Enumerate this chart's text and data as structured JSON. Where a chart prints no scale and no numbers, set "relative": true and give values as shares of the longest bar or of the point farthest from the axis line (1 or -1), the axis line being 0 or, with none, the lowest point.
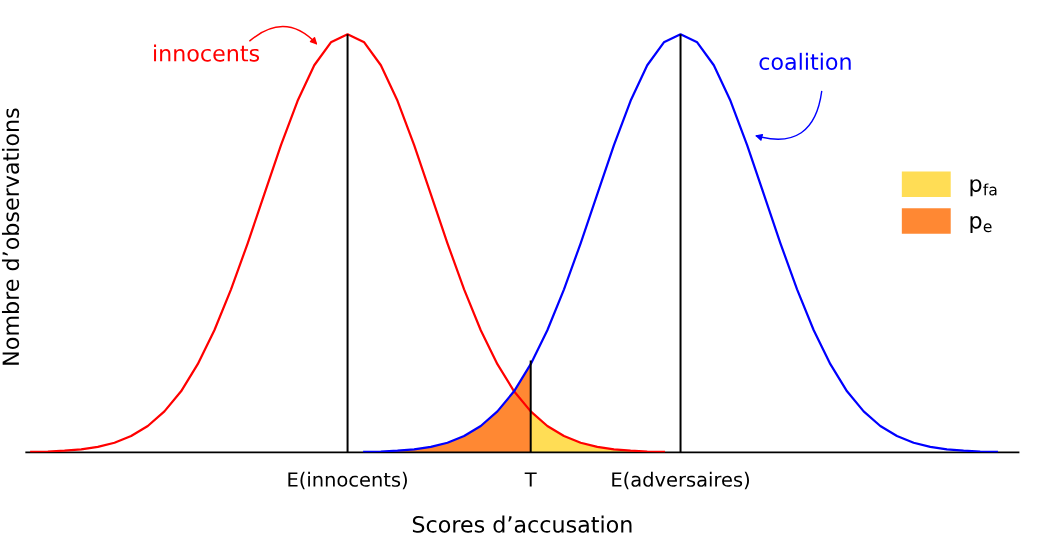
{
  "chart_data": {
    "type": "line",
    "relative": true,
    "xlabel": "Scores d’accusation",
    "ylabel": "Nombre d’observations",
    "legend": "right",
    "tick_labels": "x",
    "grid": false,
    "categories": [
      null,
      null,
      null,
      null,
      null,
      null,
      null,
      null,
      null,
      null,
      null,
      null,
      null,
      null,
      null,
      null,
      null,
      null,
      null,
      "E(innocents)",
      null,
      null,
      null,
      null,
      null,
      null,
      null,
      null,
      null,
      null,
      "T",
      null,
      null,
      null,
      null,
      null,
      null,
      null,
      null,
      "E(adversaires)",
      null,
      null,
      null,
      null,
      null,
      null,
      null,
      null,
      null,
      null,
      null,
      null,
      null,
      null,
      null,
      null,
      null,
      null,
      null,
      null
    ],
    "series": [
      {
        "type": "area",
        "name": "p$_{fa}$",
        "color": "#ffdd55",
        "values": [
          null,
          null,
          null,
          null,
          null,
          null,
          null,
          null,
          null,
          null,
          null,
          null,
          null,
          null,
          null,
          null,
          null,
          null,
          null,
          null,
          null,
          null,
          null,
          null,
          null,
          null,
          null,
          null,
          null,
          null,
          0.098,
          0.063,
          0.039,
          0.023,
          0.013,
          0.007,
          0.004,
          0.002,
          0.001,
          null,
          null,
          null,
          null,
          null,
          null,
          null,
          null,
          null,
          null,
          null,
          null,
          null,
          null,
          null,
          null,
          null,
          null,
          null,
          null,
          null
        ]
      },
      {
        "type": "area",
        "name": "p$_{e}$",
        "color": "#ff8833",
        "values": [
          null,
          null,
          null,
          null,
          null,
          null,
          null,
          null,
          null,
          null,
          null,
          null,
          null,
          null,
          null,
          null,
          null,
          null,
          null,
          null,
          0.001,
          0.002,
          0.004,
          0.007,
          0.013,
          0.023,
          0.039,
          0.063,
          0.098,
          0.146,
          0.211,
          null,
          null,
          null,
          null,
          null,
          null,
          null,
          null,
          null,
          null,
          null,
          null,
          null,
          null,
          null,
          null,
          null,
          null,
          null,
          null,
          null,
          null,
          null,
          null,
          null,
          null,
          null,
          null,
          null
        ]
      },
      {
        "name": "innocents",
        "color": "#ff0000",
        "values": [
          0.001,
          0.002,
          0.004,
          0.007,
          0.013,
          0.023,
          0.039,
          0.063,
          0.098,
          0.146,
          0.211,
          0.292,
          0.39,
          0.5,
          0.618,
          0.735,
          0.841,
          0.926,
          0.981,
          1,
          0.981,
          0.926,
          0.841,
          0.735,
          0.618,
          0.5,
          0.39,
          0.292,
          0.211,
          0.146,
          0.098,
          0.063,
          0.039,
          0.023,
          0.013,
          0.007,
          0.004,
          0.002,
          0.001,
          null,
          null,
          null,
          null,
          null,
          null,
          null,
          null,
          null,
          null,
          null,
          null,
          null,
          null,
          null,
          null,
          null,
          null,
          null,
          null,
          null
        ]
      },
      {
        "name": "coalition",
        "color": "#0000ff",
        "values": [
          null,
          null,
          null,
          null,
          null,
          null,
          null,
          null,
          null,
          null,
          null,
          null,
          null,
          null,
          null,
          null,
          null,
          null,
          null,
          null,
          0.001,
          0.002,
          0.004,
          0.007,
          0.013,
          0.023,
          0.039,
          0.063,
          0.098,
          0.146,
          0.211,
          0.292,
          0.39,
          0.5,
          0.618,
          0.735,
          0.841,
          0.926,
          0.981,
          1,
          0.981,
          0.926,
          0.841,
          0.735,
          0.618,
          0.5,
          0.39,
          0.292,
          0.211,
          0.146,
          0.098,
          0.063,
          0.039,
          0.023,
          0.013,
          0.007,
          0.004,
          0.002,
          0.001,
          null
        ]
      },
      {
        "type": "bar",
        "color": "#000000",
        "values": [
          null,
          null,
          null,
          null,
          null,
          null,
          null,
          null,
          null,
          null,
          null,
          null,
          null,
          null,
          null,
          null,
          null,
          null,
          null,
          1,
          null,
          null,
          null,
          null,
          null,
          null,
          null,
          null,
          null,
          null,
          0.22,
          null,
          null,
          null,
          null,
          null,
          null,
          null,
          null,
          1,
          null,
          null,
          null,
          null,
          null,
          null,
          null,
          null,
          null,
          null,
          null,
          null,
          null,
          null,
          null,
          null,
          null,
          null,
          null,
          null
        ]
      }
    ]
  }
}
